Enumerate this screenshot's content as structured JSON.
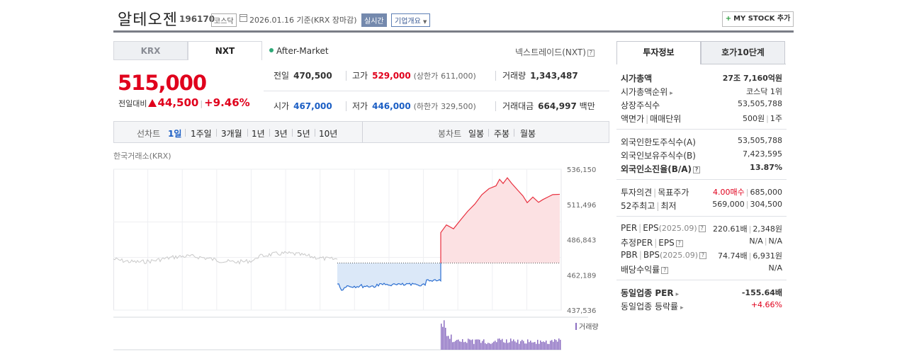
{
  "header": {
    "name": "알테오젠",
    "code": "196170",
    "market": "코스닥",
    "date": "2026.01.16",
    "basis": "기준(KRX 장마감)",
    "live": "실시간",
    "company_info": "기업개요",
    "mystock": "MY STOCK 추가"
  },
  "tabs": {
    "krx": "KRX",
    "nxt": "NXT"
  },
  "after_market": "After-Market",
  "nxt_label": "넥스트레이드(NXT)",
  "quote": {
    "price": "515,000",
    "change_label": "전일대비",
    "change": "44,500",
    "change_pct": "+9.46%",
    "prev_label": "전일",
    "prev": "470,500",
    "high_label": "고가",
    "high": "529,000",
    "upper_label": "(상한가",
    "upper": "611,000)",
    "volume_label": "거래량",
    "volume": "1,343,487",
    "open_label": "시가",
    "open": "467,000",
    "low_label": "저가",
    "low": "446,000",
    "lower_label": "(하한가",
    "lower": "329,500)",
    "amount_label": "거래대금",
    "amount": "664,997",
    "amount_unit": "백만"
  },
  "toolbar": {
    "line_chart": "선차트",
    "periods": [
      "1일",
      "1주일",
      "3개월",
      "1년",
      "3년",
      "5년",
      "10년"
    ],
    "selected": "1일",
    "candle_chart": "봉차트",
    "candles": [
      "일봉",
      "주봉",
      "월봉"
    ]
  },
  "chart_source": "한국거래소(KRX)",
  "chart_data": {
    "type": "area",
    "y_ticks": [
      "536,150",
      "511,496",
      "486,843",
      "462,189",
      "437,536"
    ],
    "ylim": [
      437536,
      536150
    ],
    "baseline": 470500,
    "volume_label": "거래량",
    "grid": true
  },
  "right_panel": {
    "tab_active": "투자정보",
    "tab_other": "호가10단계",
    "rows": {
      "market_cap_label": "시가총액",
      "market_cap": "27조 7,160억원",
      "rank_label": "시가총액순위",
      "rank": "코스닥 1위",
      "shares_label": "상장주식수",
      "shares": "53,505,788",
      "par_label": "액면가",
      "unit_label": "매매단위",
      "par": "500원",
      "unit": "1주",
      "foreign_limit_label": "외국인한도주식수(A)",
      "foreign_limit": "53,505,788",
      "foreign_hold_label": "외국인보유주식수(B)",
      "foreign_hold": "7,423,595",
      "foreign_ratio_label": "외국인소진율(B/A)",
      "foreign_ratio": "13.87%",
      "opinion_label": "투자의견",
      "target_label": "목표주가",
      "opinion": "4.00매수",
      "target": "685,000",
      "w52_label": "52주최고",
      "w52low_label": "최저",
      "w52_high": "569,000",
      "w52_low": "304,500",
      "per_label": "PER",
      "eps_label": "EPS",
      "eps_period": "(2025.09)",
      "per": "220.61배",
      "eps": "2,348원",
      "est_per_label": "추정PER",
      "est_eps_label": "EPS",
      "est_per": "N/A",
      "est_eps": "N/A",
      "pbr_label": "PBR",
      "bps_label": "BPS",
      "bps_period": "(2025.09)",
      "pbr": "74.74배",
      "bps": "6,931원",
      "div_label": "배당수익률",
      "div": "N/A",
      "sector_per_label": "동일업종 PER",
      "sector_per": "-155.64배",
      "sector_rate_label": "동일업종 등락률",
      "sector_rate": "+4.66%"
    }
  }
}
